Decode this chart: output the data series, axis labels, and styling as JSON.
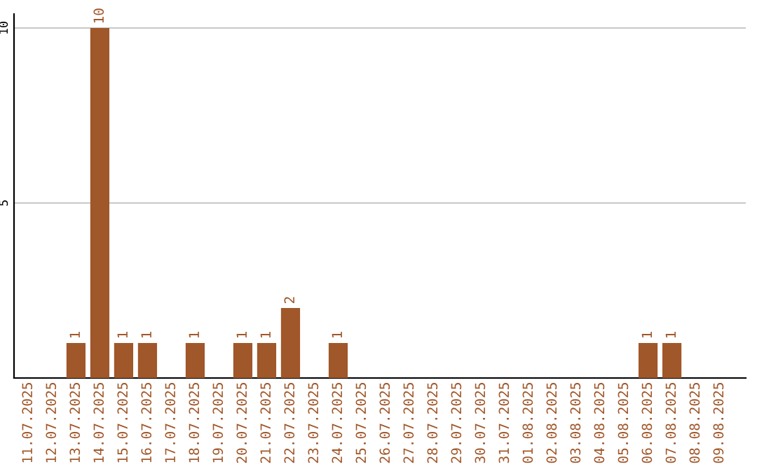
{
  "chart_data": {
    "type": "bar",
    "categories": [
      "11.07.2025",
      "12.07.2025",
      "13.07.2025",
      "14.07.2025",
      "15.07.2025",
      "16.07.2025",
      "17.07.2025",
      "18.07.2025",
      "19.07.2025",
      "20.07.2025",
      "21.07.2025",
      "22.07.2025",
      "23.07.2025",
      "24.07.2025",
      "25.07.2025",
      "26.07.2025",
      "27.07.2025",
      "28.07.2025",
      "29.07.2025",
      "30.07.2025",
      "31.07.2025",
      "01.08.2025",
      "02.08.2025",
      "03.08.2025",
      "04.08.2025",
      "05.08.2025",
      "06.08.2025",
      "07.08.2025",
      "08.08.2025",
      "09.08.2025"
    ],
    "values": [
      0,
      0,
      1,
      10,
      1,
      1,
      0,
      1,
      0,
      1,
      1,
      2,
      0,
      1,
      0,
      0,
      0,
      0,
      0,
      0,
      0,
      0,
      0,
      0,
      0,
      0,
      1,
      1,
      0,
      0
    ],
    "value_labels": [
      null,
      null,
      "1",
      "10",
      "1",
      "1",
      null,
      "1",
      null,
      "1",
      "1",
      "2",
      null,
      "1",
      null,
      null,
      null,
      null,
      null,
      null,
      null,
      null,
      null,
      null,
      null,
      null,
      "1",
      "1",
      null,
      null
    ],
    "color": "#a0572a",
    "ylim": [
      0,
      10.4
    ],
    "yticks": [
      5,
      10
    ],
    "grid": "y"
  }
}
